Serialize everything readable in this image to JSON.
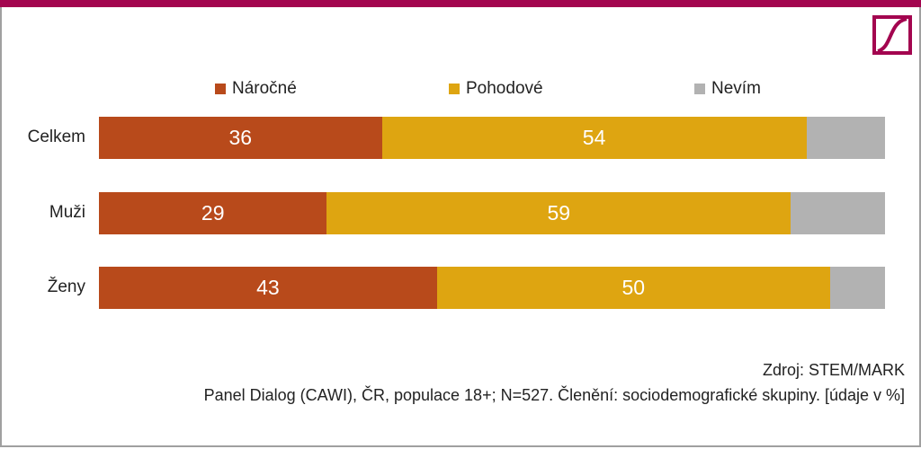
{
  "chart_data": {
    "type": "bar",
    "orientation": "horizontal",
    "stacked": true,
    "categories": [
      "Celkem",
      "Muži",
      "Ženy"
    ],
    "series": [
      {
        "name": "Náročné",
        "color": "#b84a1b",
        "values": [
          36,
          29,
          43
        ],
        "labels": [
          "36",
          "29",
          "43"
        ]
      },
      {
        "name": "Pohodové",
        "color": "#dea511",
        "values": [
          54,
          59,
          50
        ],
        "labels": [
          "54",
          "59",
          "50"
        ]
      },
      {
        "name": "Nevím",
        "color": "#b2b2b2",
        "values": [
          10,
          12,
          7
        ],
        "labels": [
          "",
          "",
          ""
        ]
      }
    ],
    "xlim": [
      0,
      100
    ],
    "legend": "top"
  },
  "source": "Zdroj: STEM/MARK",
  "note": "Panel Dialog (CAWI), ČR, populace 18+; N=527. Členění: sociodemografické skupiny. [údaje v %]",
  "colors": {
    "brand": "#a3054f"
  }
}
